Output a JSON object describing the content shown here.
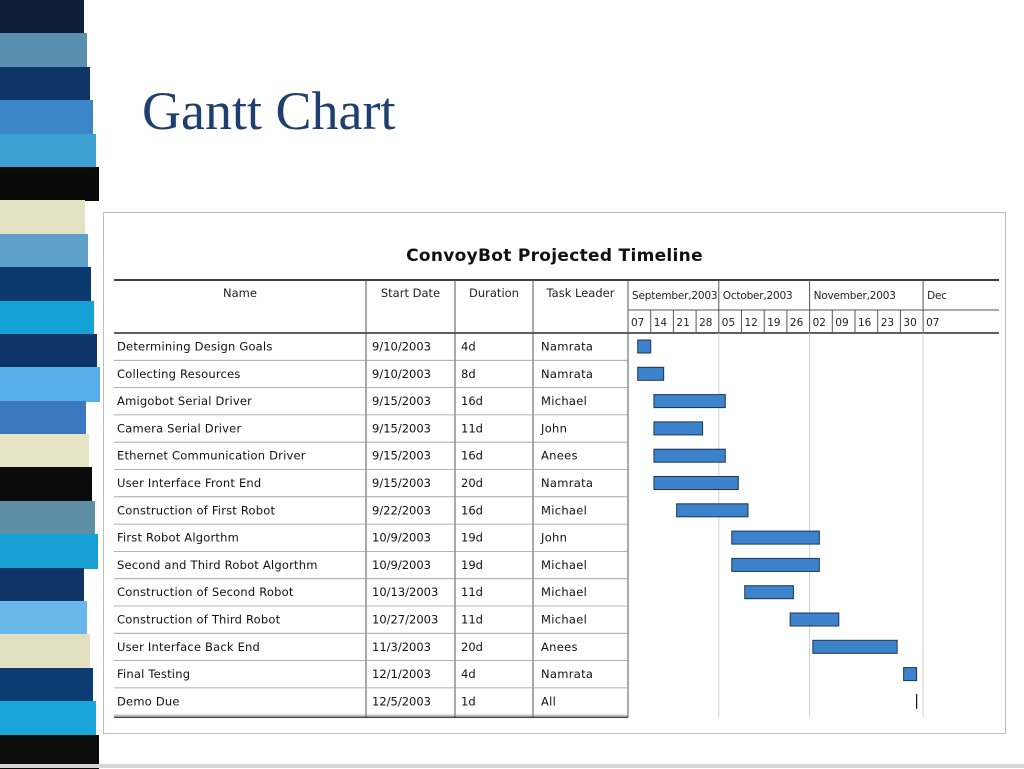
{
  "slide": {
    "title": "Gantt Chart",
    "stripe_colors": [
      "#0d1d3a",
      "#5b8fb0",
      "#0e3566",
      "#3a86c8",
      "#3c9fcf",
      "#0a0a0a",
      "#e2e2c2",
      "#5fa0c8",
      "#0b3a6e",
      "#14a1d6",
      "#0e3566",
      "#57aee8",
      "#3a79c0",
      "#e7e5c6",
      "#0b0b0b",
      "#5e8fa4",
      "#18a0d4",
      "#0e3566",
      "#6ab7ec",
      "#e2e0c0",
      "#0b3d72",
      "#1aa6db",
      "#0c0c0c"
    ]
  },
  "chart_data": {
    "type": "gantt",
    "title": "ConvoyBot Projected Timeline",
    "columns": [
      "Name",
      "Start Date",
      "Duration",
      "Task Leader"
    ],
    "months": [
      "September,2003",
      "October,2003",
      "November,2003",
      "Dec"
    ],
    "weeks": [
      "07",
      "14",
      "21",
      "28",
      "05",
      "12",
      "19",
      "26",
      "02",
      "09",
      "16",
      "23",
      "30",
      "07"
    ],
    "timeline_start": "2003-09-07",
    "timeline_end": "2003-12-14",
    "tasks": [
      {
        "name": "Determining Design Goals",
        "start": "9/10/2003",
        "duration": "4d",
        "leader": "Namrata",
        "from": "2003-09-10",
        "to": "2003-09-14"
      },
      {
        "name": "Collecting Resources",
        "start": "9/10/2003",
        "duration": "8d",
        "leader": "Namrata",
        "from": "2003-09-10",
        "to": "2003-09-18"
      },
      {
        "name": "Amigobot Serial Driver",
        "start": "9/15/2003",
        "duration": "16d",
        "leader": "Michael",
        "from": "2003-09-15",
        "to": "2003-10-07"
      },
      {
        "name": "Camera Serial Driver",
        "start": "9/15/2003",
        "duration": "11d",
        "leader": "John",
        "from": "2003-09-15",
        "to": "2003-09-30"
      },
      {
        "name": "Ethernet Communication Driver",
        "start": "9/15/2003",
        "duration": "16d",
        "leader": "Anees",
        "from": "2003-09-15",
        "to": "2003-10-07"
      },
      {
        "name": "User Interface Front End",
        "start": "9/15/2003",
        "duration": "20d",
        "leader": "Namrata",
        "from": "2003-09-15",
        "to": "2003-10-11"
      },
      {
        "name": "Construction of First Robot",
        "start": "9/22/2003",
        "duration": "16d",
        "leader": "Michael",
        "from": "2003-09-22",
        "to": "2003-10-14"
      },
      {
        "name": "First Robot Algorthm",
        "start": "10/9/2003",
        "duration": "19d",
        "leader": "John",
        "from": "2003-10-09",
        "to": "2003-11-05"
      },
      {
        "name": "Second and Third Robot Algorthm",
        "start": "10/9/2003",
        "duration": "19d",
        "leader": "Michael",
        "from": "2003-10-09",
        "to": "2003-11-05"
      },
      {
        "name": "Construction of Second Robot",
        "start": "10/13/2003",
        "duration": "11d",
        "leader": "Michael",
        "from": "2003-10-13",
        "to": "2003-10-28"
      },
      {
        "name": "Construction of Third Robot",
        "start": "10/27/2003",
        "duration": "11d",
        "leader": "Michael",
        "from": "2003-10-27",
        "to": "2003-11-11"
      },
      {
        "name": "User Interface Back End",
        "start": "11/3/2003",
        "duration": "20d",
        "leader": "Anees",
        "from": "2003-11-03",
        "to": "2003-11-29"
      },
      {
        "name": "Final Testing",
        "start": "12/1/2003",
        "duration": "4d",
        "leader": "Namrata",
        "from": "2003-12-01",
        "to": "2003-12-05"
      },
      {
        "name": "Demo Due",
        "start": "12/5/2003",
        "duration": "1d",
        "leader": "All",
        "from": "2003-12-05",
        "to": "2003-12-05",
        "milestone": true
      }
    ],
    "colors": {
      "bar": "#3d82cc",
      "bar_border": "#1b3552",
      "grid": "#cfcfcf",
      "rule": "#000000"
    }
  }
}
